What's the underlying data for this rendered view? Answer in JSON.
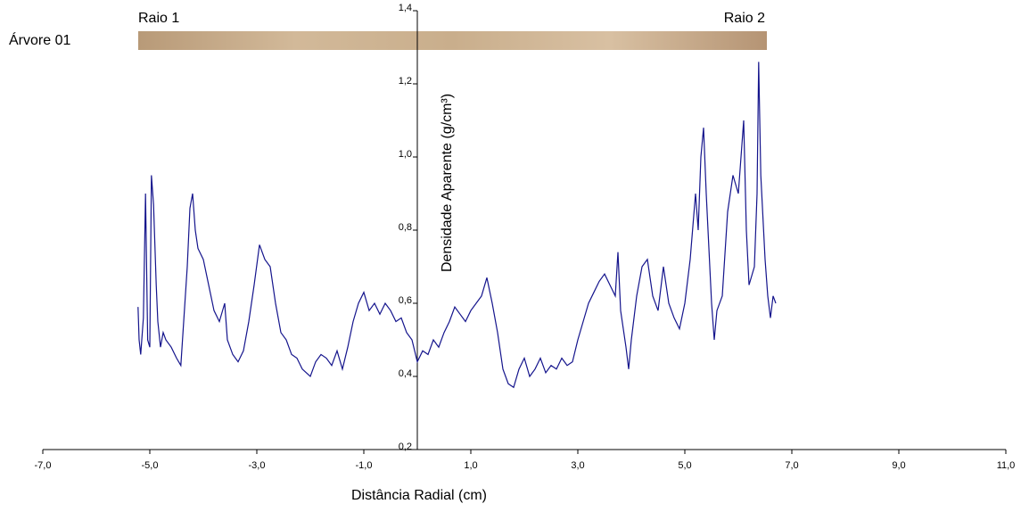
{
  "chart_data": {
    "type": "line",
    "annotations": {
      "tree": "Árvore 01",
      "left": "Raio 1",
      "right": "Raio 2"
    },
    "xlabel": "Distância Radial (cm)",
    "ylabel": "Densidade Aparente (g/cm³)",
    "xlim": [
      -7,
      11
    ],
    "xticks": [
      {
        "value": -7,
        "label": "-7,0"
      },
      {
        "value": -5,
        "label": "-5,0"
      },
      {
        "value": -3,
        "label": "-3,0"
      },
      {
        "value": -1,
        "label": "-1,0"
      },
      {
        "value": 1,
        "label": "1,0"
      },
      {
        "value": 3,
        "label": "3,0"
      },
      {
        "value": 5,
        "label": "5,0"
      },
      {
        "value": 7,
        "label": "7,0"
      },
      {
        "value": 9,
        "label": "9,0"
      },
      {
        "value": 11,
        "label": "11,0"
      }
    ],
    "ylim": [
      0.2,
      1.4
    ],
    "yticks": [
      {
        "value": 0.2,
        "label": "0,2"
      },
      {
        "value": 0.4,
        "label": "0,4"
      },
      {
        "value": 0.6,
        "label": "0,6"
      },
      {
        "value": 0.8,
        "label": "0,8"
      },
      {
        "value": 1.0,
        "label": "1,0"
      },
      {
        "value": 1.2,
        "label": "1,2"
      },
      {
        "value": 1.4,
        "label": "1,4"
      }
    ],
    "color": "#14148c",
    "x": [
      -5.22,
      -5.2,
      -5.17,
      -5.12,
      -5.08,
      -5.04,
      -5.0,
      -4.97,
      -4.93,
      -4.88,
      -4.85,
      -4.8,
      -4.75,
      -4.7,
      -4.6,
      -4.5,
      -4.42,
      -4.38,
      -4.3,
      -4.25,
      -4.2,
      -4.15,
      -4.1,
      -4.0,
      -3.9,
      -3.8,
      -3.7,
      -3.6,
      -3.55,
      -3.45,
      -3.35,
      -3.25,
      -3.15,
      -3.05,
      -2.95,
      -2.85,
      -2.75,
      -2.65,
      -2.55,
      -2.45,
      -2.35,
      -2.25,
      -2.15,
      -2.0,
      -1.9,
      -1.8,
      -1.7,
      -1.6,
      -1.5,
      -1.4,
      -1.3,
      -1.2,
      -1.1,
      -1.0,
      -0.9,
      -0.8,
      -0.7,
      -0.6,
      -0.5,
      -0.4,
      -0.3,
      -0.2,
      -0.1,
      0.0,
      0.1,
      0.2,
      0.3,
      0.4,
      0.5,
      0.6,
      0.7,
      0.8,
      0.9,
      1.0,
      1.1,
      1.2,
      1.3,
      1.4,
      1.5,
      1.6,
      1.7,
      1.8,
      1.9,
      2.0,
      2.1,
      2.2,
      2.3,
      2.4,
      2.5,
      2.6,
      2.7,
      2.8,
      2.9,
      3.0,
      3.1,
      3.2,
      3.3,
      3.4,
      3.5,
      3.6,
      3.7,
      3.75,
      3.8,
      3.9,
      3.95,
      4.0,
      4.1,
      4.2,
      4.3,
      4.4,
      4.5,
      4.6,
      4.7,
      4.8,
      4.9,
      5.0,
      5.1,
      5.2,
      5.25,
      5.3,
      5.35,
      5.4,
      5.5,
      5.55,
      5.6,
      5.7,
      5.8,
      5.9,
      6.0,
      6.05,
      6.1,
      6.15,
      6.2,
      6.3,
      6.35,
      6.38,
      6.42,
      6.5,
      6.55,
      6.6,
      6.65,
      6.7
    ],
    "values": [
      0.59,
      0.5,
      0.46,
      0.56,
      0.9,
      0.5,
      0.48,
      0.95,
      0.87,
      0.65,
      0.55,
      0.48,
      0.52,
      0.5,
      0.48,
      0.45,
      0.43,
      0.52,
      0.7,
      0.86,
      0.9,
      0.8,
      0.75,
      0.72,
      0.65,
      0.58,
      0.55,
      0.6,
      0.5,
      0.46,
      0.44,
      0.47,
      0.55,
      0.65,
      0.76,
      0.72,
      0.7,
      0.6,
      0.52,
      0.5,
      0.46,
      0.45,
      0.42,
      0.4,
      0.44,
      0.46,
      0.45,
      0.43,
      0.47,
      0.42,
      0.48,
      0.55,
      0.6,
      0.63,
      0.58,
      0.6,
      0.57,
      0.6,
      0.58,
      0.55,
      0.56,
      0.52,
      0.5,
      0.44,
      0.47,
      0.46,
      0.5,
      0.48,
      0.52,
      0.55,
      0.59,
      0.57,
      0.55,
      0.58,
      0.6,
      0.62,
      0.67,
      0.6,
      0.52,
      0.42,
      0.38,
      0.37,
      0.42,
      0.45,
      0.4,
      0.42,
      0.45,
      0.41,
      0.43,
      0.42,
      0.45,
      0.43,
      0.44,
      0.5,
      0.55,
      0.6,
      0.63,
      0.66,
      0.68,
      0.65,
      0.62,
      0.74,
      0.58,
      0.48,
      0.42,
      0.5,
      0.62,
      0.7,
      0.72,
      0.62,
      0.58,
      0.7,
      0.6,
      0.56,
      0.53,
      0.6,
      0.72,
      0.9,
      0.8,
      1.0,
      1.08,
      0.9,
      0.6,
      0.5,
      0.58,
      0.62,
      0.85,
      0.95,
      0.9,
      1.0,
      1.1,
      0.8,
      0.65,
      0.7,
      0.9,
      1.26,
      0.95,
      0.72,
      0.62,
      0.56,
      0.62,
      0.6
    ]
  }
}
